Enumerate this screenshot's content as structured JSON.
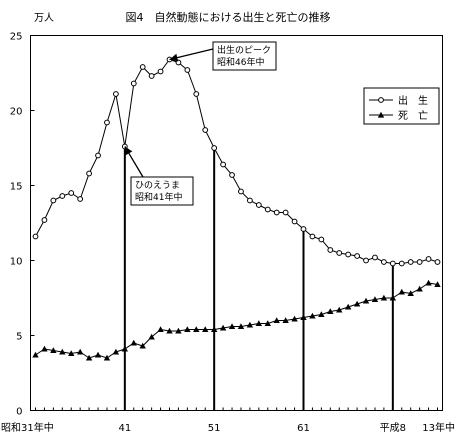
{
  "chart_data": {
    "type": "line",
    "title": "図4　自然動態における出生と死亡の推移",
    "ylabel": "万人",
    "xlabel": "",
    "ylim": [
      0,
      25
    ],
    "yticks": [
      0,
      5,
      10,
      15,
      20,
      25
    ],
    "x_range": [
      1956,
      2001
    ],
    "x_tick_labels": [
      {
        "year": 1956,
        "label": "昭和31年中"
      },
      {
        "year": 1966,
        "label": "41"
      },
      {
        "year": 1976,
        "label": "51"
      },
      {
        "year": 1986,
        "label": "61"
      },
      {
        "year": 1996,
        "label": "平成8"
      },
      {
        "year": 2001,
        "label": "13年中"
      }
    ],
    "grid": false,
    "legend": "top-right",
    "x": [
      1956,
      1957,
      1958,
      1959,
      1960,
      1961,
      1962,
      1963,
      1964,
      1965,
      1966,
      1967,
      1968,
      1969,
      1970,
      1971,
      1972,
      1973,
      1974,
      1975,
      1976,
      1977,
      1978,
      1979,
      1980,
      1981,
      1982,
      1983,
      1984,
      1985,
      1986,
      1987,
      1988,
      1989,
      1990,
      1991,
      1992,
      1993,
      1994,
      1995,
      1996,
      1997,
      1998,
      1999,
      2000,
      2001
    ],
    "series": [
      {
        "name": "出　生",
        "marker": "circle",
        "color": "#000000",
        "values": [
          11.6,
          12.7,
          14.0,
          14.3,
          14.5,
          14.1,
          15.8,
          17.0,
          19.2,
          21.1,
          17.6,
          21.8,
          22.9,
          22.3,
          22.6,
          23.4,
          23.2,
          22.7,
          21.1,
          18.7,
          17.5,
          16.4,
          15.7,
          14.6,
          14.0,
          13.7,
          13.4,
          13.2,
          13.2,
          12.6,
          12.1,
          11.6,
          11.4,
          10.7,
          10.5,
          10.4,
          10.3,
          10.0,
          10.2,
          9.9,
          9.8,
          9.8,
          9.9,
          9.9,
          10.1,
          9.9
        ]
      },
      {
        "name": "死　亡",
        "marker": "triangle",
        "color": "#000000",
        "values": [
          3.7,
          4.1,
          4.0,
          3.9,
          3.8,
          3.9,
          3.5,
          3.7,
          3.5,
          3.9,
          4.1,
          4.5,
          4.3,
          4.9,
          5.4,
          5.3,
          5.3,
          5.4,
          5.4,
          5.4,
          5.4,
          5.5,
          5.6,
          5.6,
          5.7,
          5.8,
          5.8,
          6.0,
          6.0,
          6.1,
          6.2,
          6.3,
          6.4,
          6.6,
          6.7,
          6.9,
          7.1,
          7.3,
          7.4,
          7.5,
          7.5,
          7.9,
          7.8,
          8.1,
          8.5,
          8.4
        ]
      }
    ],
    "annotations": [
      {
        "text": [
          "出生のピーク",
          "昭和46年中"
        ],
        "year": 1971,
        "value": 23.4
      },
      {
        "text": [
          "ひのえうま",
          "昭和41年中"
        ],
        "year": 1966,
        "value": 17.6
      }
    ],
    "vertical_lines": [
      1966,
      1976,
      1986,
      1996
    ]
  }
}
